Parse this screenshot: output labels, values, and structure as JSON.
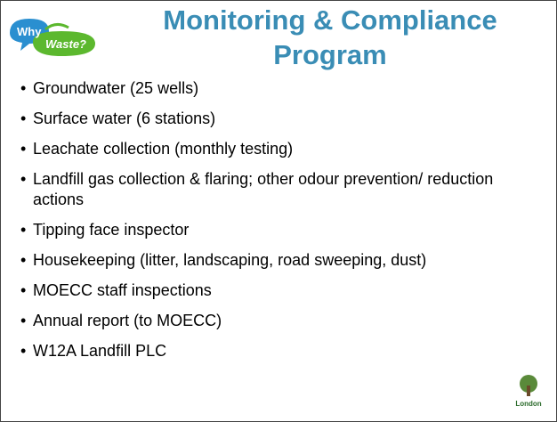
{
  "header": {
    "logo": {
      "line1": "Why",
      "line2": "Waste?"
    },
    "title": "Monitoring & Compliance Program"
  },
  "bullets": [
    "Groundwater (25 wells)",
    "Surface water (6 stations)",
    "Leachate collection (monthly testing)",
    "Landfill gas collection & flaring; other odour prevention/ reduction actions",
    "Tipping face inspector",
    "Housekeeping (litter, landscaping, road sweeping, dust)",
    "MOECC staff inspections",
    "Annual report (to MOECC)",
    "W12A Landfill PLC"
  ],
  "footer": {
    "logo": "London"
  }
}
